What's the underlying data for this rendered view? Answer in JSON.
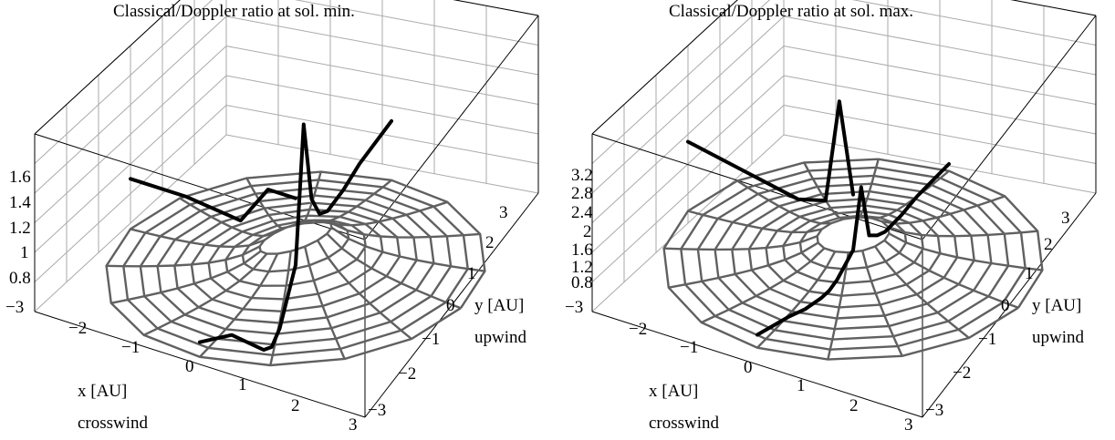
{
  "chart_data": [
    {
      "type": "surface",
      "title": "Classical/Doppler  ratio at sol. min.",
      "xlabel": "x [AU]",
      "xlabel_note": "crosswind",
      "ylabel": "y [AU]",
      "ylabel_note": "upwind",
      "x_ticks": [
        "−3",
        "−2",
        "−1",
        "0",
        "1",
        "2",
        "3"
      ],
      "y_ticks": [
        "−3",
        "−2",
        "−1",
        "0",
        "1",
        "2",
        "3"
      ],
      "z_ticks": [
        "0.8",
        "1",
        "1.2",
        "1.4",
        "1.6"
      ],
      "xlim": [
        -3,
        3
      ],
      "ylim": [
        -3,
        3
      ],
      "zlim": [
        0.8,
        1.6
      ],
      "grid": true,
      "series": [
        {
          "y": [
            -3,
            -2,
            -1.5,
            -1,
            -0.75,
            -0.5,
            0
          ],
          "values": [
            0.9,
            0.8,
            0.7,
            0.6,
            0.58,
            0.63,
            0.85
          ]
        },
        {
          "y": [
            0,
            0.25,
            0.5,
            0.75,
            1,
            1.5,
            2,
            3
          ],
          "values": [
            0.85,
            1.45,
            1.08,
            0.98,
            0.96,
            0.99,
            1.04,
            1.1
          ]
        },
        {
          "x": [
            -3,
            -2,
            -1,
            -0.5,
            0
          ],
          "values": [
            1.0,
            1.0,
            0.97,
            1.15,
            1.15
          ]
        }
      ]
    },
    {
      "type": "surface",
      "title": "Classical/Doppler  ratio at sol. max.",
      "xlabel": "x [AU]",
      "xlabel_note": "crosswind",
      "ylabel": "y [AU]",
      "ylabel_note": "upwind",
      "x_ticks": [
        "−3",
        "−2",
        "−1",
        "0",
        "1",
        "2",
        "3"
      ],
      "y_ticks": [
        "−3",
        "−2",
        "−1",
        "0",
        "1",
        "2",
        "3"
      ],
      "z_ticks": [
        "0.8",
        "1.2",
        "1.6",
        "2",
        "2.4",
        "2.8",
        "3.2"
      ],
      "xlim": [
        -3,
        3
      ],
      "ylim": [
        -3,
        3
      ],
      "zlim": [
        0.8,
        3.2
      ],
      "grid": true,
      "series": [
        {
          "y": [
            -3,
            -2,
            -1.5,
            -1,
            -0.75,
            -0.5,
            0
          ],
          "values": [
            1.2,
            1.05,
            0.95,
            0.9,
            0.9,
            0.95,
            1.15
          ]
        },
        {
          "y": [
            0,
            0.25,
            0.5,
            0.75,
            1,
            1.5,
            2,
            3
          ],
          "values": [
            1.15,
            1.9,
            1.15,
            1.05,
            1.0,
            1.02,
            1.08,
            1.12
          ]
        },
        {
          "x": [
            -3,
            -2,
            -1,
            -0.5,
            -0.25,
            0
          ],
          "values": [
            1.9,
            1.75,
            1.6,
            1.7,
            3.1,
            1.9
          ]
        }
      ]
    }
  ]
}
